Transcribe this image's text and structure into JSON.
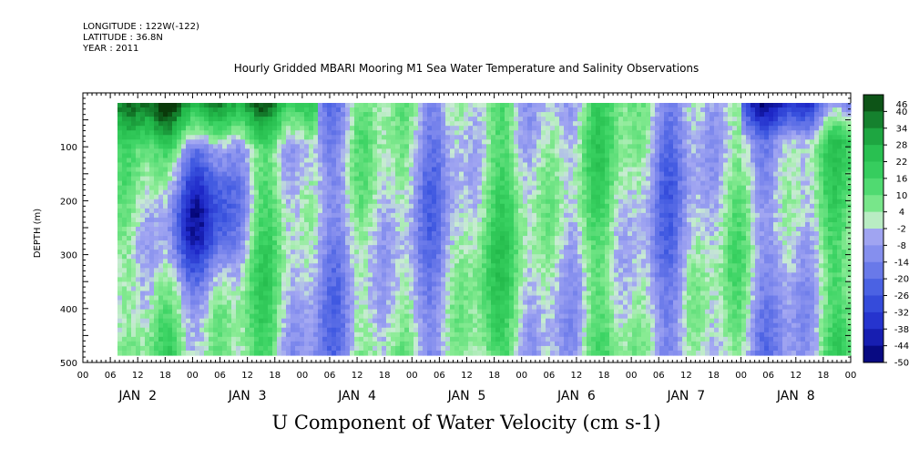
{
  "header": {
    "longitude": "LONGITUDE : 122W(-122)",
    "latitude": "LATITUDE : 36.8N",
    "year": "YEAR : 2011"
  },
  "chart_data": {
    "type": "heatmap",
    "title": "Hourly Gridded MBARI Mooring M1 Sea Water Temperature and Salinity Observations",
    "xlabel": "U Component of Water Velocity (cm s-1)",
    "ylabel": "DEPTH (m)",
    "y_ticks": [
      100,
      200,
      300,
      400,
      500
    ],
    "y_range": [
      0,
      500
    ],
    "y_direction": "depth increasing downward",
    "x_hour_labels": [
      "00",
      "06",
      "12",
      "18",
      "00",
      "06",
      "12",
      "18",
      "00",
      "06",
      "12",
      "18",
      "00",
      "06",
      "12",
      "18",
      "00",
      "06",
      "12",
      "18",
      "00",
      "06",
      "12",
      "18",
      "00",
      "06",
      "12",
      "18",
      "00"
    ],
    "x_day_labels": [
      "JAN  2",
      "JAN  3",
      "JAN  4",
      "JAN  5",
      "JAN  6",
      "JAN  7",
      "JAN  8"
    ],
    "colorbar_levels": [
      46,
      40,
      34,
      28,
      22,
      16,
      10,
      4,
      -2,
      -8,
      -14,
      -20,
      -26,
      -32,
      -38,
      -44,
      -50
    ],
    "colorbar_colors": {
      "max": "#0a3a0a",
      "green_mid": "#22b94a",
      "green_light": "#7ef08a",
      "zero": "#c8f0c8",
      "blue_light": "#a4a8f2",
      "blue_mid": "#3c56e0",
      "min": "#00006a"
    },
    "field_summary": "Alternating bands of positive (green) and negative (blue/purple) velocity with depth and time; strongest positive near surface JAN 2-3, strongest negative near surface JAN 8."
  }
}
